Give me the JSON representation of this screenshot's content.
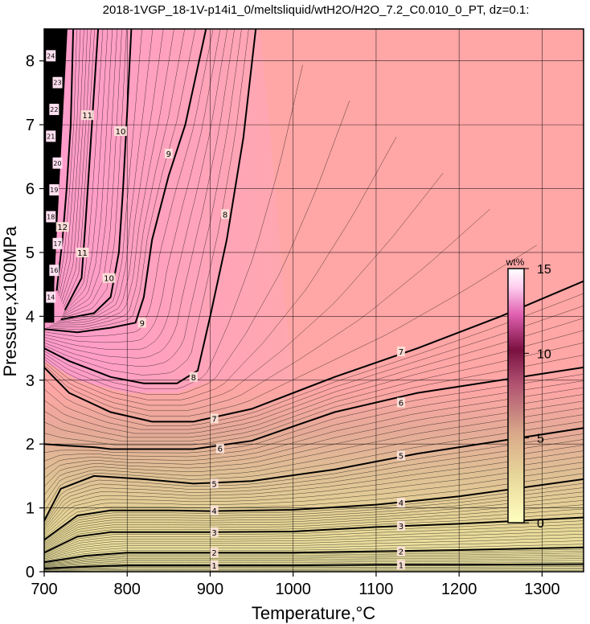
{
  "chart_data": {
    "type": "heatmap",
    "title": "2018-1VGP_18-1V-p14i1_0/meltsliquid/wtH2O/H2O_7.2_C0.010_0_PT, dz=0.1:",
    "xlabel": "Temperature,°C",
    "ylabel": "Pressure,x100MPa",
    "xlim": [
      700,
      1350
    ],
    "ylim": [
      0,
      8.5
    ],
    "x_ticks": [
      700,
      800,
      900,
      1000,
      1100,
      1200,
      1300
    ],
    "y_ticks": [
      0,
      1,
      2,
      3,
      4,
      5,
      6,
      7,
      8
    ],
    "x_tick_labels": [
      "700",
      "800",
      "900",
      "1000",
      "1100",
      "1200",
      "1300"
    ],
    "y_tick_labels": [
      "0",
      "1",
      "2",
      "3",
      "4",
      "5",
      "6",
      "7",
      "8"
    ],
    "grid": true,
    "colorbar": {
      "title": "wt%",
      "range": [
        0,
        15
      ],
      "ticks": [
        0,
        5,
        10,
        15
      ],
      "tick_labels": [
        "0",
        "5",
        "10",
        "15"
      ],
      "colors": [
        "#ffffc0",
        "#e8d89a",
        "#d9a98a",
        "#b05070",
        "#7a1040",
        "#e060b0",
        "#ffd0f0",
        "#ffffff"
      ]
    },
    "contours": [
      {
        "level": 1,
        "label": "1",
        "points": [
          [
            700,
            0.05
          ],
          [
            750,
            0.08
          ],
          [
            800,
            0.1
          ],
          [
            900,
            0.1
          ],
          [
            1000,
            0.1
          ],
          [
            1100,
            0.11
          ],
          [
            1200,
            0.11
          ],
          [
            1350,
            0.12
          ]
        ],
        "labels_at": [
          [
            905,
            0.1
          ],
          [
            1130,
            0.11
          ]
        ]
      },
      {
        "level": 2,
        "label": "2",
        "points": [
          [
            700,
            0.15
          ],
          [
            750,
            0.25
          ],
          [
            800,
            0.3
          ],
          [
            900,
            0.3
          ],
          [
            1000,
            0.3
          ],
          [
            1100,
            0.32
          ],
          [
            1200,
            0.34
          ],
          [
            1350,
            0.38
          ]
        ],
        "labels_at": [
          [
            905,
            0.3
          ],
          [
            1130,
            0.32
          ]
        ]
      },
      {
        "level": 3,
        "label": "3",
        "points": [
          [
            700,
            0.3
          ],
          [
            740,
            0.55
          ],
          [
            780,
            0.62
          ],
          [
            850,
            0.62
          ],
          [
            900,
            0.62
          ],
          [
            1000,
            0.63
          ],
          [
            1100,
            0.7
          ],
          [
            1200,
            0.75
          ],
          [
            1350,
            0.85
          ]
        ],
        "labels_at": [
          [
            905,
            0.62
          ],
          [
            1130,
            0.72
          ]
        ]
      },
      {
        "level": 4,
        "label": "4",
        "points": [
          [
            700,
            0.5
          ],
          [
            740,
            0.88
          ],
          [
            780,
            0.96
          ],
          [
            850,
            0.96
          ],
          [
            900,
            0.95
          ],
          [
            1000,
            0.97
          ],
          [
            1100,
            1.05
          ],
          [
            1200,
            1.18
          ],
          [
            1350,
            1.45
          ]
        ],
        "labels_at": [
          [
            905,
            0.96
          ],
          [
            1130,
            1.08
          ]
        ]
      },
      {
        "level": 5,
        "label": "5",
        "points": [
          [
            700,
            0.8
          ],
          [
            720,
            1.3
          ],
          [
            760,
            1.5
          ],
          [
            820,
            1.45
          ],
          [
            880,
            1.38
          ],
          [
            950,
            1.42
          ],
          [
            1050,
            1.6
          ],
          [
            1150,
            1.85
          ],
          [
            1250,
            2.05
          ],
          [
            1350,
            2.25
          ]
        ],
        "labels_at": [
          [
            905,
            1.38
          ],
          [
            1130,
            1.82
          ]
        ]
      },
      {
        "level": 6,
        "label": "6",
        "points": [
          [
            700,
            2.0
          ],
          [
            720,
            1.98
          ],
          [
            760,
            1.95
          ],
          [
            780,
            1.92
          ],
          [
            880,
            1.92
          ],
          [
            950,
            2.05
          ],
          [
            1050,
            2.5
          ],
          [
            1150,
            2.8
          ],
          [
            1250,
            3.0
          ],
          [
            1350,
            3.2
          ]
        ],
        "labels_at": [
          [
            912,
            1.93
          ],
          [
            1130,
            2.65
          ]
        ]
      },
      {
        "level": 7,
        "label": "7",
        "points": [
          [
            700,
            3.2
          ],
          [
            730,
            2.8
          ],
          [
            780,
            2.5
          ],
          [
            830,
            2.35
          ],
          [
            880,
            2.35
          ],
          [
            950,
            2.55
          ],
          [
            1050,
            3.05
          ],
          [
            1150,
            3.5
          ],
          [
            1250,
            4.0
          ],
          [
            1350,
            4.55
          ]
        ],
        "labels_at": [
          [
            905,
            2.4
          ],
          [
            1130,
            3.45
          ]
        ]
      },
      {
        "level": 8,
        "label": "8",
        "points": [
          [
            700,
            3.5
          ],
          [
            730,
            3.3
          ],
          [
            780,
            3.05
          ],
          [
            820,
            2.95
          ],
          [
            860,
            2.95
          ],
          [
            885,
            3.15
          ],
          [
            900,
            4.0
          ],
          [
            920,
            5.2
          ],
          [
            940,
            6.8
          ],
          [
            955,
            8.5
          ]
        ],
        "labels_at": [
          [
            880,
            3.05
          ],
          [
            918,
            5.6
          ]
        ]
      },
      {
        "level": 9,
        "label": "9",
        "points": [
          [
            700,
            3.8
          ],
          [
            740,
            3.75
          ],
          [
            780,
            3.82
          ],
          [
            810,
            3.9
          ],
          [
            820,
            4.3
          ],
          [
            830,
            5.2
          ],
          [
            850,
            6.2
          ],
          [
            870,
            7.0
          ],
          [
            895,
            8.5
          ]
        ],
        "labels_at": [
          [
            818,
            3.9
          ],
          [
            850,
            6.55
          ]
        ]
      },
      {
        "level": 10,
        "label": "10",
        "points": [
          [
            720,
            3.95
          ],
          [
            760,
            4.05
          ],
          [
            780,
            4.3
          ],
          [
            790,
            5.0
          ],
          [
            795,
            6.0
          ],
          [
            800,
            7.2
          ],
          [
            805,
            8.5
          ]
        ],
        "labels_at": [
          [
            778,
            4.6
          ],
          [
            792,
            6.9
          ]
        ]
      },
      {
        "level": 11,
        "label": "11",
        "points": [
          [
            725,
            4.1
          ],
          [
            745,
            4.6
          ],
          [
            750,
            5.5
          ],
          [
            755,
            6.5
          ],
          [
            760,
            7.5
          ],
          [
            765,
            8.5
          ]
        ],
        "labels_at": [
          [
            746,
            5.0
          ],
          [
            752,
            7.15
          ]
        ]
      },
      {
        "level": 12,
        "label": "12",
        "points": [
          [
            715,
            4.4
          ],
          [
            722,
            5.2
          ],
          [
            727,
            6.0
          ],
          [
            732,
            7.0
          ],
          [
            735,
            8.5
          ]
        ],
        "labels_at": [
          [
            722,
            5.4
          ]
        ]
      }
    ],
    "crowded_labels": [
      "14",
      "16",
      "17",
      "18",
      "19",
      "20",
      "21",
      "22",
      "23",
      "24"
    ]
  }
}
